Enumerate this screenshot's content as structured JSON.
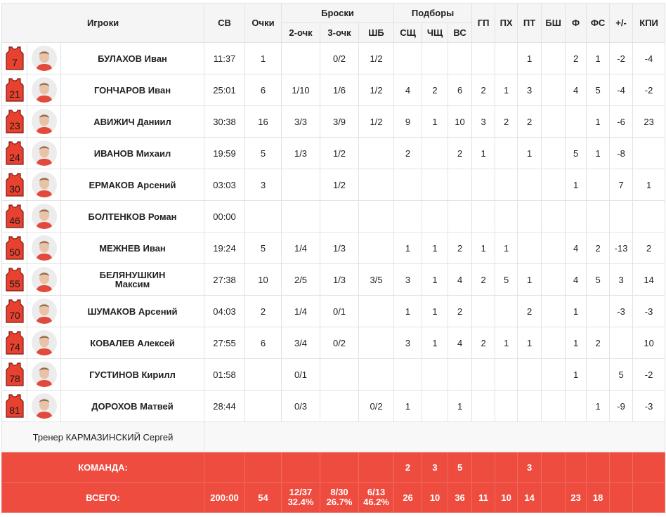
{
  "headers": {
    "players": "Игроки",
    "time": "СВ",
    "points": "Очки",
    "shots": "Броски",
    "two": "2-очк",
    "three": "3-очк",
    "ft": "ШБ",
    "rebounds": "Подборы",
    "def": "СЩ",
    "off": "ЧЩ",
    "tot": "ВС",
    "ast": "ГП",
    "stl": "ПХ",
    "to": "ПТ",
    "blk": "БШ",
    "pf": "Ф",
    "fd": "ФС",
    "pm": "+/-",
    "eff": "КПИ"
  },
  "players": [
    {
      "number": "7",
      "name": "БУЛАХОВ Иван",
      "time": "11:37",
      "pts": "1",
      "two": "",
      "three": "0/2",
      "ft": "1/2",
      "def": "",
      "off": "",
      "tot": "",
      "ast": "",
      "stl": "",
      "to": "1",
      "blk": "",
      "pf": "2",
      "fd": "1",
      "pm": "-2",
      "eff": "-4"
    },
    {
      "number": "21",
      "name": "ГОНЧАРОВ Иван",
      "time": "25:01",
      "pts": "6",
      "two": "1/10",
      "three": "1/6",
      "ft": "1/2",
      "def": "4",
      "off": "2",
      "tot": "6",
      "ast": "2",
      "stl": "1",
      "to": "3",
      "blk": "",
      "pf": "4",
      "fd": "5",
      "pm": "-4",
      "eff": "-2"
    },
    {
      "number": "23",
      "name": "АВИЖИЧ Даниил",
      "time": "30:38",
      "pts": "16",
      "two": "3/3",
      "three": "3/9",
      "ft": "1/2",
      "def": "9",
      "off": "1",
      "tot": "10",
      "ast": "3",
      "stl": "2",
      "to": "2",
      "blk": "",
      "pf": "",
      "fd": "1",
      "pm": "-6",
      "eff": "23"
    },
    {
      "number": "24",
      "name": "ИВАНОВ Михаил",
      "time": "19:59",
      "pts": "5",
      "two": "1/3",
      "three": "1/2",
      "ft": "",
      "def": "2",
      "off": "",
      "tot": "2",
      "ast": "1",
      "stl": "",
      "to": "1",
      "blk": "",
      "pf": "5",
      "fd": "1",
      "pm": "-8",
      "eff": ""
    },
    {
      "number": "30",
      "name": "ЕРМАКОВ Арсений",
      "time": "03:03",
      "pts": "3",
      "two": "",
      "three": "1/2",
      "ft": "",
      "def": "",
      "off": "",
      "tot": "",
      "ast": "",
      "stl": "",
      "to": "",
      "blk": "",
      "pf": "1",
      "fd": "",
      "pm": "7",
      "eff": "1"
    },
    {
      "number": "46",
      "name": "БОЛТЕНКОВ Роман",
      "time": "00:00",
      "pts": "",
      "two": "",
      "three": "",
      "ft": "",
      "def": "",
      "off": "",
      "tot": "",
      "ast": "",
      "stl": "",
      "to": "",
      "blk": "",
      "pf": "",
      "fd": "",
      "pm": "",
      "eff": ""
    },
    {
      "number": "50",
      "name": "МЕЖНЕВ Иван",
      "time": "19:24",
      "pts": "5",
      "two": "1/4",
      "three": "1/3",
      "ft": "",
      "def": "1",
      "off": "1",
      "tot": "2",
      "ast": "1",
      "stl": "1",
      "to": "",
      "blk": "",
      "pf": "4",
      "fd": "2",
      "pm": "-13",
      "eff": "2"
    },
    {
      "number": "55",
      "name": "БЕЛЯНУШКИН Максим",
      "time": "27:38",
      "pts": "10",
      "two": "2/5",
      "three": "1/3",
      "ft": "3/5",
      "def": "3",
      "off": "1",
      "tot": "4",
      "ast": "2",
      "stl": "5",
      "to": "1",
      "blk": "",
      "pf": "4",
      "fd": "5",
      "pm": "3",
      "eff": "14"
    },
    {
      "number": "70",
      "name": "ШУМАКОВ Арсений",
      "time": "04:03",
      "pts": "2",
      "two": "1/4",
      "three": "0/1",
      "ft": "",
      "def": "1",
      "off": "1",
      "tot": "2",
      "ast": "",
      "stl": "",
      "to": "2",
      "blk": "",
      "pf": "1",
      "fd": "",
      "pm": "-3",
      "eff": "-3"
    },
    {
      "number": "74",
      "name": "КОВАЛЕВ Алексей",
      "time": "27:55",
      "pts": "6",
      "two": "3/4",
      "three": "0/2",
      "ft": "",
      "def": "3",
      "off": "1",
      "tot": "4",
      "ast": "2",
      "stl": "1",
      "to": "1",
      "blk": "",
      "pf": "1",
      "fd": "2",
      "pm": "",
      "eff": "10"
    },
    {
      "number": "78",
      "name": "ГУСТИНОВ Кирилл",
      "time": "01:58",
      "pts": "",
      "two": "0/1",
      "three": "",
      "ft": "",
      "def": "",
      "off": "",
      "tot": "",
      "ast": "",
      "stl": "",
      "to": "",
      "blk": "",
      "pf": "1",
      "fd": "",
      "pm": "5",
      "eff": "-2"
    },
    {
      "number": "81",
      "name": "ДОРОХОВ Матвей",
      "time": "28:44",
      "pts": "",
      "two": "0/3",
      "three": "",
      "ft": "0/2",
      "def": "1",
      "off": "",
      "tot": "1",
      "ast": "",
      "stl": "",
      "to": "",
      "blk": "",
      "pf": "",
      "fd": "1",
      "pm": "-9",
      "eff": "-3"
    }
  ],
  "coach": {
    "text": "Тренер КАРМАЗИНСКИЙ Сергей"
  },
  "team": {
    "label": "КОМАНДА:",
    "def": "2",
    "off": "3",
    "tot": "5",
    "to": "3"
  },
  "total": {
    "label": "ВСЕГО:",
    "time": "200:00",
    "pts": "54",
    "two": "12/37",
    "two_pct": "32.4%",
    "three": "8/30",
    "three_pct": "26.7%",
    "ft": "6/13",
    "ft_pct": "46.2%",
    "def": "26",
    "off": "10",
    "tot": "36",
    "ast": "11",
    "stl": "10",
    "to": "14",
    "blk": "",
    "pf": "23",
    "fd": "18",
    "pm": "",
    "eff": ""
  },
  "colors": {
    "jersey": "#e8412f",
    "accent_row": "#ee4c3f",
    "header_bg": "#f5f5f5"
  },
  "icons": {
    "jersey": "jersey-icon",
    "avatar": "player-photo"
  }
}
